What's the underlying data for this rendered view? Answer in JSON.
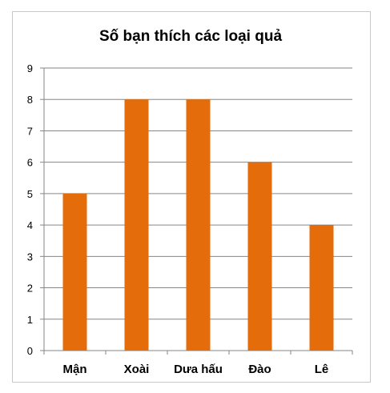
{
  "chart_data": {
    "type": "bar",
    "title": "Số bạn thích các loại quả",
    "categories": [
      "Mận",
      "Xoài",
      "Dưa hấu",
      "Đào",
      "Lê"
    ],
    "values": [
      5,
      8,
      8,
      6,
      4
    ],
    "ylim": [
      0,
      9
    ],
    "yticks": [
      0,
      1,
      2,
      3,
      4,
      5,
      6,
      7,
      8,
      9
    ],
    "grid": true,
    "legend": "none",
    "bar_color": "#e46c0a",
    "grid_color": "#868686"
  }
}
